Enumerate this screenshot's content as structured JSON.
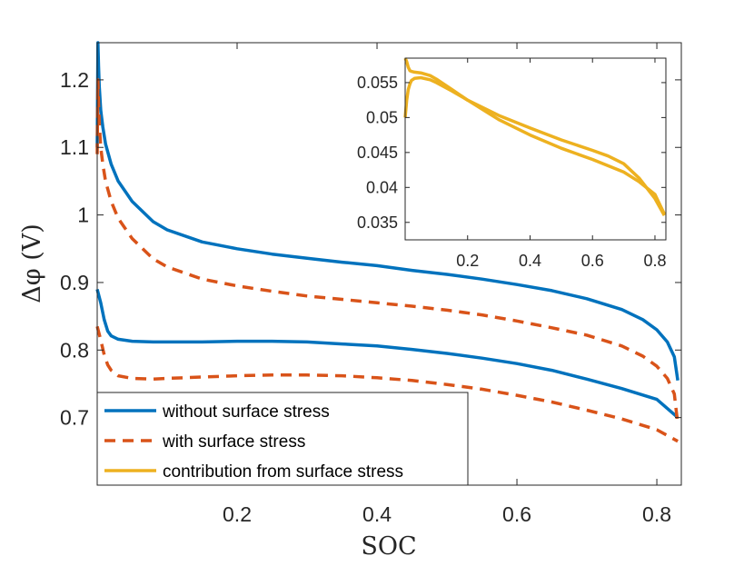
{
  "chart_data": [
    {
      "type": "line",
      "role": "main",
      "xlabel": "SOC",
      "ylabel": "Δφ (V)",
      "xlim": [
        0,
        0.835
      ],
      "ylim": [
        0.6,
        1.255
      ],
      "xticks": [
        0.2,
        0.4,
        0.6,
        0.8
      ],
      "xtick_labels": [
        "0.2",
        "0.4",
        "0.6",
        "0.8"
      ],
      "yticks": [
        0.7,
        0.8,
        0.9,
        1.0,
        1.1,
        1.2
      ],
      "ytick_labels": [
        "0.7",
        "0.8",
        "0.9",
        "1",
        "1.1",
        "1.2"
      ],
      "legend": {
        "placement": "bottom-left",
        "entries": [
          {
            "label": "without surface stress",
            "color": "#0072BD",
            "style": "solid"
          },
          {
            "label": "with surface stress",
            "color": "#D95319",
            "style": "dashed"
          },
          {
            "label": "contribution from surface stress",
            "color": "#EDB120",
            "style": "solid"
          }
        ]
      },
      "series": [
        {
          "name": "without surface stress",
          "branch": "upper",
          "color": "#0072BD",
          "style": "solid",
          "x": [
            0.0,
            0.001,
            0.002,
            0.003,
            0.005,
            0.008,
            0.012,
            0.02,
            0.03,
            0.05,
            0.08,
            0.1,
            0.15,
            0.2,
            0.25,
            0.3,
            0.35,
            0.4,
            0.45,
            0.5,
            0.55,
            0.6,
            0.65,
            0.7,
            0.75,
            0.78,
            0.8,
            0.815,
            0.825,
            0.83
          ],
          "y": [
            1.1,
            1.255,
            1.22,
            1.19,
            1.155,
            1.13,
            1.105,
            1.075,
            1.05,
            1.02,
            0.99,
            0.978,
            0.96,
            0.95,
            0.942,
            0.936,
            0.93,
            0.925,
            0.918,
            0.912,
            0.905,
            0.897,
            0.888,
            0.876,
            0.86,
            0.845,
            0.83,
            0.812,
            0.79,
            0.755
          ]
        },
        {
          "name": "without surface stress",
          "branch": "lower",
          "color": "#0072BD",
          "style": "solid",
          "x": [
            0.0,
            0.005,
            0.01,
            0.015,
            0.02,
            0.03,
            0.05,
            0.08,
            0.1,
            0.15,
            0.2,
            0.25,
            0.3,
            0.35,
            0.4,
            0.45,
            0.5,
            0.55,
            0.6,
            0.65,
            0.7,
            0.75,
            0.8,
            0.83
          ],
          "y": [
            0.89,
            0.87,
            0.845,
            0.828,
            0.821,
            0.816,
            0.813,
            0.812,
            0.812,
            0.812,
            0.813,
            0.813,
            0.812,
            0.809,
            0.806,
            0.801,
            0.795,
            0.788,
            0.78,
            0.77,
            0.757,
            0.743,
            0.727,
            0.7
          ]
        },
        {
          "name": "with surface stress",
          "branch": "upper",
          "color": "#D95319",
          "style": "dashed",
          "x": [
            0.0,
            0.001,
            0.002,
            0.003,
            0.005,
            0.008,
            0.012,
            0.02,
            0.03,
            0.05,
            0.08,
            0.1,
            0.15,
            0.2,
            0.25,
            0.3,
            0.35,
            0.4,
            0.45,
            0.5,
            0.55,
            0.6,
            0.65,
            0.7,
            0.75,
            0.78,
            0.8,
            0.815,
            0.825,
            0.83
          ],
          "y": [
            1.09,
            1.2,
            1.165,
            1.135,
            1.1,
            1.075,
            1.05,
            1.02,
            0.995,
            0.965,
            0.935,
            0.923,
            0.905,
            0.895,
            0.887,
            0.88,
            0.875,
            0.87,
            0.865,
            0.859,
            0.852,
            0.843,
            0.833,
            0.822,
            0.806,
            0.791,
            0.776,
            0.758,
            0.735,
            0.69
          ]
        },
        {
          "name": "with surface stress",
          "branch": "lower",
          "color": "#D95319",
          "style": "dashed",
          "x": [
            0.0,
            0.005,
            0.01,
            0.015,
            0.02,
            0.03,
            0.05,
            0.08,
            0.1,
            0.15,
            0.2,
            0.25,
            0.3,
            0.35,
            0.4,
            0.45,
            0.5,
            0.55,
            0.6,
            0.65,
            0.7,
            0.75,
            0.8,
            0.83
          ],
          "y": [
            0.835,
            0.815,
            0.793,
            0.778,
            0.77,
            0.762,
            0.758,
            0.757,
            0.758,
            0.76,
            0.762,
            0.763,
            0.763,
            0.762,
            0.759,
            0.755,
            0.749,
            0.742,
            0.733,
            0.723,
            0.711,
            0.698,
            0.682,
            0.665
          ]
        }
      ]
    },
    {
      "type": "line",
      "role": "inset",
      "xlim": [
        0,
        0.835
      ],
      "ylim": [
        0.0325,
        0.0585
      ],
      "xticks": [
        0.2,
        0.4,
        0.6,
        0.8
      ],
      "xtick_labels": [
        "0.2",
        "0.4",
        "0.6",
        "0.8"
      ],
      "yticks": [
        0.035,
        0.04,
        0.045,
        0.05,
        0.055
      ],
      "ytick_labels": [
        "0.035",
        "0.04",
        "0.045",
        "0.05",
        "0.055"
      ],
      "series": [
        {
          "name": "contribution from surface stress",
          "branch": "upper",
          "color": "#EDB120",
          "style": "solid",
          "x": [
            0.0,
            0.005,
            0.01,
            0.015,
            0.02,
            0.03,
            0.05,
            0.08,
            0.1,
            0.15,
            0.2,
            0.3,
            0.4,
            0.5,
            0.6,
            0.65,
            0.7,
            0.75,
            0.8,
            0.83
          ],
          "y": [
            0.0585,
            0.058,
            0.0572,
            0.0567,
            0.0566,
            0.0565,
            0.0564,
            0.056,
            0.0555,
            0.054,
            0.0525,
            0.0503,
            0.0485,
            0.0468,
            0.0453,
            0.0445,
            0.0434,
            0.0413,
            0.0384,
            0.036
          ]
        },
        {
          "name": "contribution from surface stress",
          "branch": "lower",
          "color": "#EDB120",
          "style": "solid",
          "x": [
            0.0,
            0.005,
            0.01,
            0.015,
            0.02,
            0.03,
            0.05,
            0.08,
            0.1,
            0.15,
            0.2,
            0.3,
            0.4,
            0.5,
            0.6,
            0.7,
            0.75,
            0.8,
            0.83
          ],
          "y": [
            0.05,
            0.0525,
            0.054,
            0.0548,
            0.0553,
            0.0556,
            0.0557,
            0.0554,
            0.055,
            0.0538,
            0.0525,
            0.0497,
            0.0475,
            0.0456,
            0.044,
            0.0422,
            0.0408,
            0.039,
            0.0362
          ]
        }
      ]
    }
  ]
}
